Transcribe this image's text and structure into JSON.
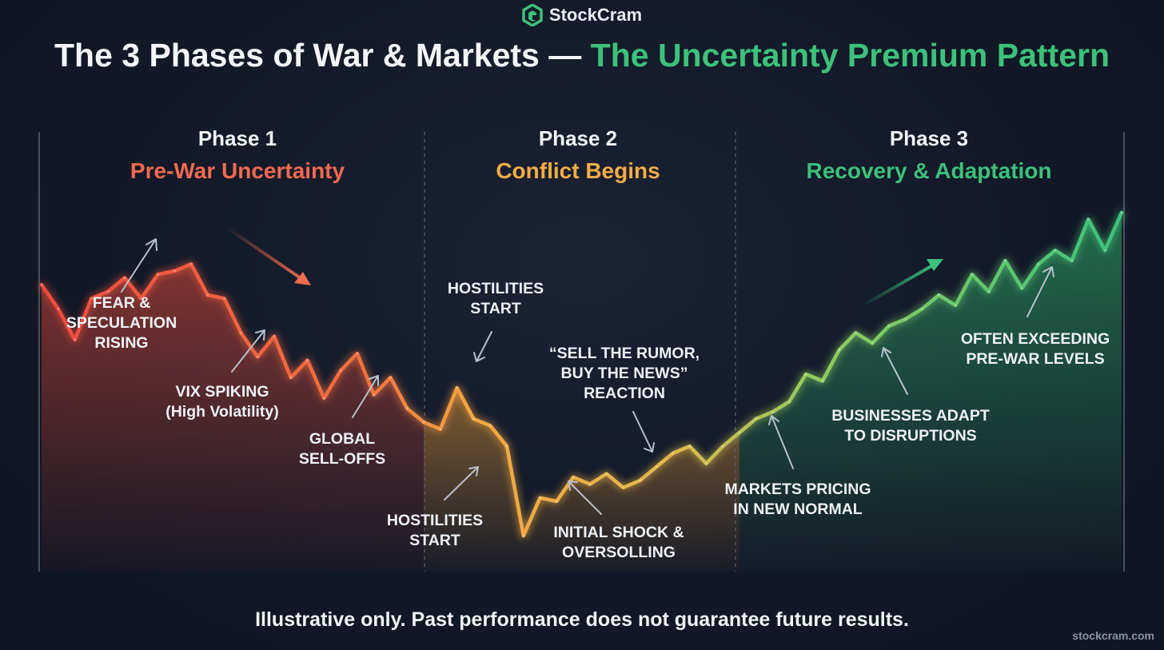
{
  "brand": {
    "name": "StockCram",
    "logo_icon": "hexagon-c-icon",
    "color": "#3cc27a"
  },
  "title": {
    "main": "The 3 Phases of War & Markets —",
    "accent": "The Uncertainty Premium Pattern"
  },
  "footer": {
    "disclaimer": "Illustrative only. Past performance does not guarantee future results.",
    "site": "stockcram.com"
  },
  "chart_data": {
    "type": "line",
    "title": "The 3 Phases of War & Markets — The Uncertainty Premium Pattern",
    "xlabel": "",
    "ylabel": "",
    "grid": false,
    "illustrative": true,
    "x": [
      0,
      1,
      2,
      3,
      4,
      5,
      6,
      7,
      8,
      9,
      10,
      11,
      12,
      13,
      14,
      15,
      16,
      17,
      18,
      19,
      20,
      21,
      22,
      23,
      24,
      25,
      26,
      27,
      28,
      29,
      30,
      31,
      32,
      33,
      34,
      35,
      36,
      37,
      38,
      39,
      40,
      41,
      42,
      43,
      44,
      45,
      46,
      47,
      48,
      49,
      50,
      51,
      52,
      53,
      54,
      55,
      56,
      57,
      58,
      59,
      60,
      61,
      62,
      63,
      64,
      65
    ],
    "values": [
      73,
      66,
      57,
      69,
      71,
      75,
      69,
      76,
      77,
      79,
      70,
      69,
      59,
      52,
      58,
      46,
      51,
      40,
      48,
      53,
      41,
      46,
      37,
      33,
      31,
      43,
      34,
      32,
      26,
      0,
      11,
      10,
      17,
      15,
      18,
      14,
      16,
      20,
      24,
      26,
      21,
      26,
      30,
      34,
      36,
      39,
      47,
      45,
      54,
      59,
      56,
      61,
      63,
      66,
      70,
      67,
      76,
      71,
      80,
      72,
      79,
      83,
      80,
      92,
      83,
      94
    ],
    "xlim": [
      0,
      65
    ],
    "ylim": [
      0,
      100
    ],
    "colors": {
      "phase1": "#f0553f",
      "phase2": "#f2a93a",
      "phase3": "#3cc27a"
    },
    "phases": [
      {
        "name": "Phase 1",
        "label": "Pre-War Uncertainty",
        "color": "#f26a4f",
        "x_start": 0,
        "x_end": 23
      },
      {
        "name": "Phase 2",
        "label": "Conflict Begins",
        "color": "#f4ac45",
        "x_start": 23,
        "x_end": 42
      },
      {
        "name": "Phase 3",
        "label": "Recovery & Adaptation",
        "color": "#3cc27a",
        "x_start": 42,
        "x_end": 65
      }
    ],
    "annotations": [
      {
        "lines": [
          "FEAR &",
          "SPECULATION",
          "RISING"
        ]
      },
      {
        "lines": [
          "VIX SPIKING",
          "(High Volatility)"
        ]
      },
      {
        "lines": [
          "GLOBAL",
          "SELL-OFFS"
        ]
      },
      {
        "lines": [
          "HOSTILITIES",
          "START"
        ]
      },
      {
        "lines": [
          "HOSTILITIES",
          "START"
        ]
      },
      {
        "lines": [
          "“SELL THE RUMOR,",
          "BUY THE NEWS”",
          "REACTION"
        ]
      },
      {
        "lines": [
          "INITIAL SHOCK &",
          "OVERSOLLING"
        ]
      },
      {
        "lines": [
          "MARKETS PRICING",
          "IN NEW NORMAL"
        ]
      },
      {
        "lines": [
          "BUSINESSES ADAPT",
          "TO DISRUPTIONS"
        ]
      },
      {
        "lines": [
          "OFTEN EXCEEDING",
          "PRE-WAR LEVELS"
        ]
      }
    ]
  }
}
